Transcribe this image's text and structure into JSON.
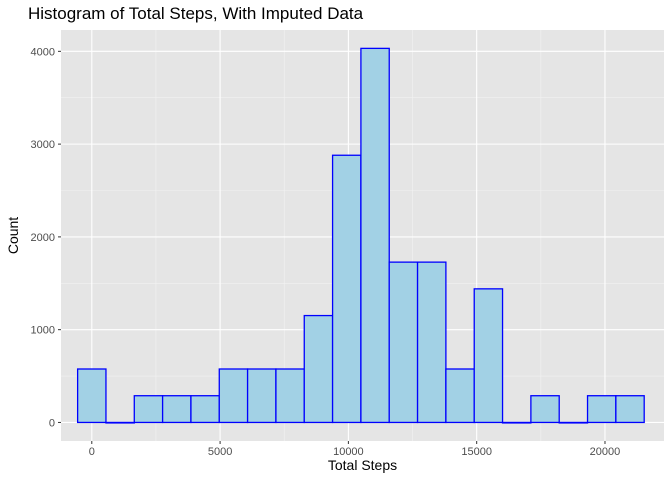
{
  "chart_data": {
    "type": "bar",
    "title": "Histogram of Total Steps, With Imputed Data",
    "xlabel": "Total Steps",
    "ylabel": "Count",
    "xlim": [
      -1200,
      22300
    ],
    "ylim": [
      -200,
      4230
    ],
    "x_ticks": [
      0,
      5000,
      10000,
      15000,
      20000
    ],
    "y_ticks": [
      0,
      1000,
      2000,
      3000,
      4000
    ],
    "bin_width": 1104,
    "bin_centers": [
      0,
      1104,
      2208,
      3312,
      4416,
      5520,
      6624,
      7728,
      8832,
      9936,
      11040,
      12144,
      13248,
      14352,
      15456,
      16560,
      17664,
      18768,
      19872,
      20976
    ],
    "values": [
      576,
      0,
      288,
      288,
      288,
      576,
      576,
      576,
      1152,
      2880,
      4032,
      1728,
      1728,
      576,
      1440,
      0,
      288,
      0,
      288,
      288
    ],
    "bar_fill": "#a2d1e5",
    "bar_stroke": "#0000ff",
    "panel_background": "#e5e5e5",
    "grid": true
  }
}
